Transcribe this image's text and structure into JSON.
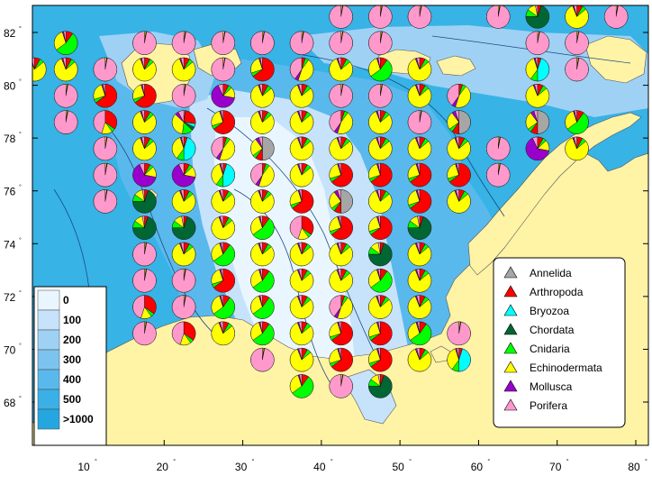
{
  "map": {
    "background_color": "#37b3e6",
    "land_color": "#fff3a6",
    "shallow_colors": [
      "#eaf6ff",
      "#c6e3fb",
      "#9fd1f5",
      "#7cc4ef",
      "#5ab9ec",
      "#3ab0e6"
    ],
    "x_axis": {
      "ticks": [
        10,
        20,
        30,
        40,
        50,
        60,
        70,
        80
      ],
      "min": 8.5,
      "max": 80.5
    },
    "y_axis": {
      "ticks": [
        68,
        70,
        72,
        74,
        76,
        78,
        80,
        82
      ],
      "min": 66.3,
      "max": 83.05
    }
  },
  "depth_legend": {
    "items": [
      "0",
      "100",
      "200",
      "300",
      "400",
      "500",
      ">1000"
    ],
    "colors": [
      "#eaf6ff",
      "#c6e3fb",
      "#9fd1f5",
      "#7cc4ef",
      "#5ab9ec",
      "#3ab0e6",
      "#25a6e0"
    ]
  },
  "taxa_legend": {
    "items": [
      {
        "name": "Annelida",
        "color": "#a6a6a6"
      },
      {
        "name": "Arthropoda",
        "color": "#ff0000"
      },
      {
        "name": "Bryozoa",
        "color": "#00ffff"
      },
      {
        "name": "Chordata",
        "color": "#006633"
      },
      {
        "name": "Cnidaria",
        "color": "#00ff00"
      },
      {
        "name": "Echinodermata",
        "color": "#ffff00"
      },
      {
        "name": "Mollusca",
        "color": "#9900cc"
      },
      {
        "name": "Porifera",
        "color": "#ff99cc"
      }
    ]
  },
  "pie_types": {
    "P": [
      0,
      0,
      0,
      0,
      0,
      2,
      1,
      97
    ],
    "Y": [
      0,
      8,
      0,
      0,
      6,
      80,
      2,
      4
    ],
    "YP": [
      0,
      5,
      0,
      0,
      5,
      45,
      5,
      40
    ],
    "R": [
      0,
      65,
      0,
      0,
      5,
      25,
      2,
      3
    ],
    "RP": [
      0,
      35,
      0,
      0,
      5,
      15,
      0,
      45
    ],
    "G": [
      0,
      10,
      0,
      0,
      55,
      30,
      2,
      3
    ],
    "D": [
      0,
      5,
      0,
      70,
      10,
      12,
      0,
      3
    ],
    "M": [
      0,
      8,
      0,
      0,
      5,
      15,
      65,
      7
    ],
    "C": [
      0,
      5,
      45,
      0,
      10,
      35,
      2,
      3
    ],
    "A": [
      50,
      10,
      0,
      0,
      5,
      25,
      5,
      5
    ],
    "MX": [
      2,
      25,
      5,
      5,
      15,
      35,
      5,
      8
    ]
  },
  "pies": [
    {
      "lon": 42.5,
      "lat": 82.6,
      "t": "P"
    },
    {
      "lon": 47.5,
      "lat": 82.6,
      "t": "P"
    },
    {
      "lon": 52.5,
      "lat": 82.6,
      "t": "P"
    },
    {
      "lon": 62.5,
      "lat": 82.6,
      "t": "P"
    },
    {
      "lon": 67.5,
      "lat": 82.6,
      "t": "D"
    },
    {
      "lon": 72.5,
      "lat": 82.6,
      "t": "Y"
    },
    {
      "lon": 77.5,
      "lat": 82.6,
      "t": "P"
    },
    {
      "lon": 7.5,
      "lat": 81.6,
      "t": "G"
    },
    {
      "lon": 17.5,
      "lat": 81.6,
      "t": "P"
    },
    {
      "lon": 22.5,
      "lat": 81.6,
      "t": "P"
    },
    {
      "lon": 27.5,
      "lat": 81.6,
      "t": "P"
    },
    {
      "lon": 32.5,
      "lat": 81.6,
      "t": "P"
    },
    {
      "lon": 37.5,
      "lat": 81.6,
      "t": "P"
    },
    {
      "lon": 42.5,
      "lat": 81.6,
      "t": "P"
    },
    {
      "lon": 47.5,
      "lat": 81.6,
      "t": "P"
    },
    {
      "lon": 67.5,
      "lat": 81.6,
      "t": "P"
    },
    {
      "lon": 72.5,
      "lat": 81.6,
      "t": "P"
    },
    {
      "lon": 3.5,
      "lat": 80.6,
      "t": "Y"
    },
    {
      "lon": 7.5,
      "lat": 80.6,
      "t": "Y"
    },
    {
      "lon": 12.5,
      "lat": 80.6,
      "t": "P"
    },
    {
      "lon": 17.5,
      "lat": 80.6,
      "t": "Y"
    },
    {
      "lon": 22.5,
      "lat": 80.6,
      "t": "Y"
    },
    {
      "lon": 27.5,
      "lat": 80.6,
      "t": "P"
    },
    {
      "lon": 32.5,
      "lat": 80.6,
      "t": "R"
    },
    {
      "lon": 37.5,
      "lat": 80.6,
      "t": "YP"
    },
    {
      "lon": 42.5,
      "lat": 80.6,
      "t": "Y"
    },
    {
      "lon": 47.5,
      "lat": 80.6,
      "t": "G"
    },
    {
      "lon": 52.5,
      "lat": 80.6,
      "t": "Y"
    },
    {
      "lon": 67.5,
      "lat": 80.6,
      "t": "C"
    },
    {
      "lon": 72.5,
      "lat": 80.6,
      "t": "P"
    },
    {
      "lon": 7.5,
      "lat": 79.6,
      "t": "P"
    },
    {
      "lon": 12.5,
      "lat": 79.6,
      "t": "R"
    },
    {
      "lon": 17.5,
      "lat": 79.6,
      "t": "R"
    },
    {
      "lon": 22.5,
      "lat": 79.6,
      "t": "P"
    },
    {
      "lon": 27.5,
      "lat": 79.6,
      "t": "M"
    },
    {
      "lon": 32.5,
      "lat": 79.6,
      "t": "Y"
    },
    {
      "lon": 37.5,
      "lat": 79.6,
      "t": "Y"
    },
    {
      "lon": 42.5,
      "lat": 79.6,
      "t": "P"
    },
    {
      "lon": 47.5,
      "lat": 79.6,
      "t": "P"
    },
    {
      "lon": 52.5,
      "lat": 79.6,
      "t": "Y"
    },
    {
      "lon": 57.5,
      "lat": 79.6,
      "t": "YP"
    },
    {
      "lon": 67.5,
      "lat": 79.6,
      "t": "Y"
    },
    {
      "lon": 7.5,
      "lat": 78.6,
      "t": "P"
    },
    {
      "lon": 12.5,
      "lat": 78.6,
      "t": "RP"
    },
    {
      "lon": 17.5,
      "lat": 78.6,
      "t": "Y"
    },
    {
      "lon": 22.5,
      "lat": 78.6,
      "t": "MX"
    },
    {
      "lon": 27.5,
      "lat": 78.6,
      "t": "R"
    },
    {
      "lon": 32.5,
      "lat": 78.6,
      "t": "Y"
    },
    {
      "lon": 37.5,
      "lat": 78.6,
      "t": "Y"
    },
    {
      "lon": 42.5,
      "lat": 78.6,
      "t": "YP"
    },
    {
      "lon": 47.5,
      "lat": 78.6,
      "t": "Y"
    },
    {
      "lon": 52.5,
      "lat": 78.6,
      "t": "P"
    },
    {
      "lon": 57.5,
      "lat": 78.6,
      "t": "A"
    },
    {
      "lon": 67.5,
      "lat": 78.6,
      "t": "A"
    },
    {
      "lon": 72.5,
      "lat": 78.6,
      "t": "G"
    },
    {
      "lon": 12.5,
      "lat": 77.6,
      "t": "P"
    },
    {
      "lon": 17.5,
      "lat": 77.6,
      "t": "Y"
    },
    {
      "lon": 22.5,
      "lat": 77.6,
      "t": "C"
    },
    {
      "lon": 27.5,
      "lat": 77.6,
      "t": "YP"
    },
    {
      "lon": 32.5,
      "lat": 77.6,
      "t": "A"
    },
    {
      "lon": 37.5,
      "lat": 77.6,
      "t": "Y"
    },
    {
      "lon": 42.5,
      "lat": 77.6,
      "t": "Y"
    },
    {
      "lon": 47.5,
      "lat": 77.6,
      "t": "Y"
    },
    {
      "lon": 52.5,
      "lat": 77.6,
      "t": "Y"
    },
    {
      "lon": 57.5,
      "lat": 77.6,
      "t": "Y"
    },
    {
      "lon": 62.5,
      "lat": 77.6,
      "t": "P"
    },
    {
      "lon": 67.5,
      "lat": 77.6,
      "t": "M"
    },
    {
      "lon": 72.5,
      "lat": 77.6,
      "t": "Y"
    },
    {
      "lon": 12.5,
      "lat": 76.6,
      "t": "P"
    },
    {
      "lon": 17.5,
      "lat": 76.6,
      "t": "M"
    },
    {
      "lon": 22.5,
      "lat": 76.6,
      "t": "M"
    },
    {
      "lon": 27.5,
      "lat": 76.6,
      "t": "C"
    },
    {
      "lon": 32.5,
      "lat": 76.6,
      "t": "YP"
    },
    {
      "lon": 37.5,
      "lat": 76.6,
      "t": "Y"
    },
    {
      "lon": 42.5,
      "lat": 76.6,
      "t": "R"
    },
    {
      "lon": 47.5,
      "lat": 76.6,
      "t": "R"
    },
    {
      "lon": 52.5,
      "lat": 76.6,
      "t": "R"
    },
    {
      "lon": 57.5,
      "lat": 76.6,
      "t": "R"
    },
    {
      "lon": 62.5,
      "lat": 76.6,
      "t": "P"
    },
    {
      "lon": 12.5,
      "lat": 75.6,
      "t": "P"
    },
    {
      "lon": 17.5,
      "lat": 75.6,
      "t": "D"
    },
    {
      "lon": 22.5,
      "lat": 75.6,
      "t": "Y"
    },
    {
      "lon": 27.5,
      "lat": 75.6,
      "t": "Y"
    },
    {
      "lon": 32.5,
      "lat": 75.6,
      "t": "Y"
    },
    {
      "lon": 37.5,
      "lat": 75.6,
      "t": "R"
    },
    {
      "lon": 42.5,
      "lat": 75.6,
      "t": "A"
    },
    {
      "lon": 47.5,
      "lat": 75.6,
      "t": "Y"
    },
    {
      "lon": 52.5,
      "lat": 75.6,
      "t": "R"
    },
    {
      "lon": 57.5,
      "lat": 75.6,
      "t": "Y"
    },
    {
      "lon": 17.5,
      "lat": 74.6,
      "t": "D"
    },
    {
      "lon": 22.5,
      "lat": 74.6,
      "t": "D"
    },
    {
      "lon": 27.5,
      "lat": 74.6,
      "t": "Y"
    },
    {
      "lon": 32.5,
      "lat": 74.6,
      "t": "G"
    },
    {
      "lon": 37.5,
      "lat": 74.6,
      "t": "RP"
    },
    {
      "lon": 42.5,
      "lat": 74.6,
      "t": "R"
    },
    {
      "lon": 47.5,
      "lat": 74.6,
      "t": "R"
    },
    {
      "lon": 52.5,
      "lat": 74.6,
      "t": "D"
    },
    {
      "lon": 17.5,
      "lat": 73.6,
      "t": "P"
    },
    {
      "lon": 22.5,
      "lat": 73.6,
      "t": "Y"
    },
    {
      "lon": 27.5,
      "lat": 73.6,
      "t": "G"
    },
    {
      "lon": 32.5,
      "lat": 73.6,
      "t": "Y"
    },
    {
      "lon": 37.5,
      "lat": 73.6,
      "t": "Y"
    },
    {
      "lon": 42.5,
      "lat": 73.6,
      "t": "Y"
    },
    {
      "lon": 47.5,
      "lat": 73.6,
      "t": "D"
    },
    {
      "lon": 52.5,
      "lat": 73.6,
      "t": "Y"
    },
    {
      "lon": 17.5,
      "lat": 72.6,
      "t": "P"
    },
    {
      "lon": 22.5,
      "lat": 72.6,
      "t": "P"
    },
    {
      "lon": 27.5,
      "lat": 72.6,
      "t": "R"
    },
    {
      "lon": 32.5,
      "lat": 72.6,
      "t": "G"
    },
    {
      "lon": 37.5,
      "lat": 72.6,
      "t": "Y"
    },
    {
      "lon": 42.5,
      "lat": 72.6,
      "t": "Y"
    },
    {
      "lon": 47.5,
      "lat": 72.6,
      "t": "G"
    },
    {
      "lon": 52.5,
      "lat": 72.6,
      "t": "Y"
    },
    {
      "lon": 17.5,
      "lat": 71.6,
      "t": "RP"
    },
    {
      "lon": 22.5,
      "lat": 71.6,
      "t": "P"
    },
    {
      "lon": 27.5,
      "lat": 71.6,
      "t": "G"
    },
    {
      "lon": 32.5,
      "lat": 71.6,
      "t": "G"
    },
    {
      "lon": 37.5,
      "lat": 71.6,
      "t": "Y"
    },
    {
      "lon": 42.5,
      "lat": 71.6,
      "t": "YP"
    },
    {
      "lon": 47.5,
      "lat": 71.6,
      "t": "Y"
    },
    {
      "lon": 52.5,
      "lat": 71.6,
      "t": "Y"
    },
    {
      "lon": 17.5,
      "lat": 70.6,
      "t": "P"
    },
    {
      "lon": 22.5,
      "lat": 70.6,
      "t": "RP"
    },
    {
      "lon": 27.5,
      "lat": 70.6,
      "t": "Y"
    },
    {
      "lon": 32.5,
      "lat": 70.6,
      "t": "G"
    },
    {
      "lon": 37.5,
      "lat": 70.6,
      "t": "Y"
    },
    {
      "lon": 42.5,
      "lat": 70.6,
      "t": "R"
    },
    {
      "lon": 47.5,
      "lat": 70.6,
      "t": "R"
    },
    {
      "lon": 52.5,
      "lat": 70.6,
      "t": "G"
    },
    {
      "lon": 57.5,
      "lat": 70.6,
      "t": "P"
    },
    {
      "lon": 32.5,
      "lat": 69.6,
      "t": "P"
    },
    {
      "lon": 37.5,
      "lat": 69.6,
      "t": "Y"
    },
    {
      "lon": 42.5,
      "lat": 69.6,
      "t": "R"
    },
    {
      "lon": 47.5,
      "lat": 69.6,
      "t": "R"
    },
    {
      "lon": 52.5,
      "lat": 69.6,
      "t": "Y"
    },
    {
      "lon": 57.5,
      "lat": 69.6,
      "t": "C"
    },
    {
      "lon": 37.5,
      "lat": 68.6,
      "t": "G"
    },
    {
      "lon": 42.5,
      "lat": 68.6,
      "t": "P"
    },
    {
      "lon": 47.5,
      "lat": 68.6,
      "t": "D"
    }
  ]
}
